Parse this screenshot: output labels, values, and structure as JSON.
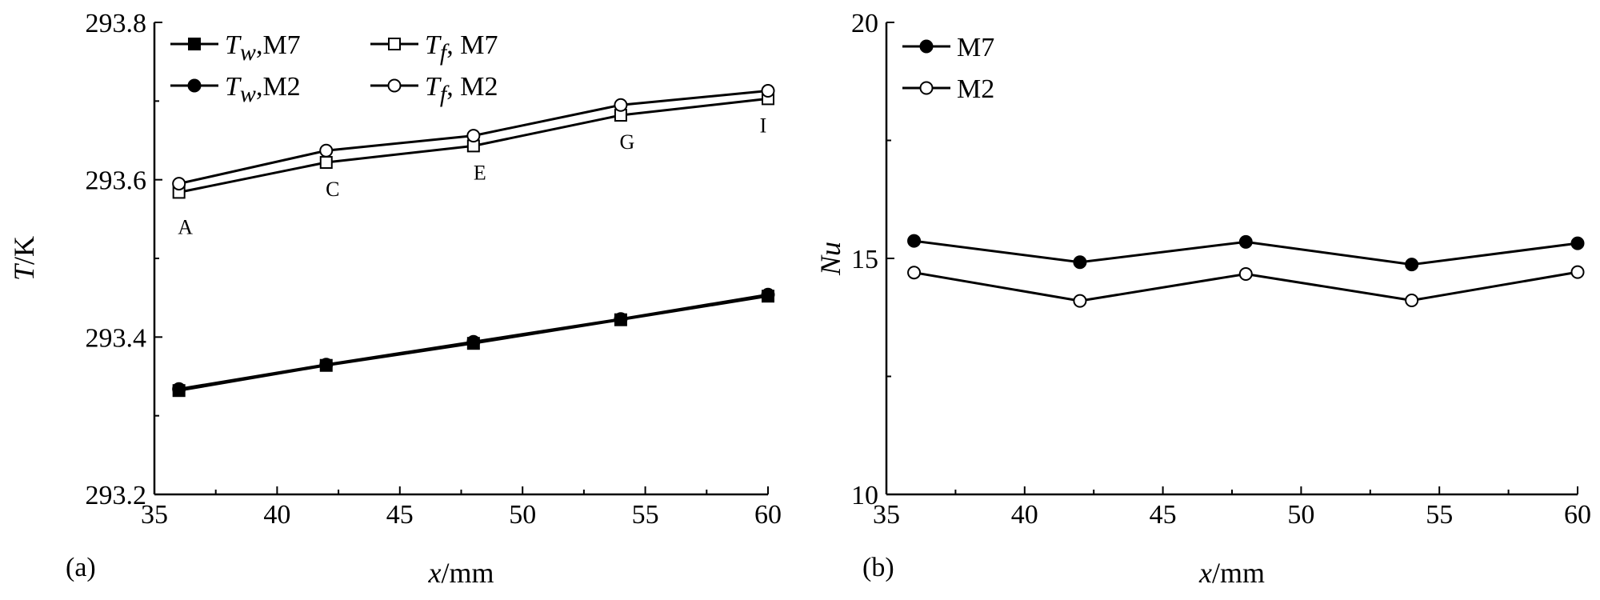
{
  "chart_data": [
    {
      "panel": "(a)",
      "type": "line",
      "xlabel": {
        "var": "x",
        "unit": "/mm"
      },
      "ylabel": {
        "var": "T",
        "unit": "/K"
      },
      "xlim": [
        35,
        60
      ],
      "ylim": [
        293.2,
        293.8
      ],
      "xticks": [
        "35",
        "40",
        "45",
        "50",
        "55",
        "60"
      ],
      "yticks": [
        "293.2",
        "293.4",
        "293.6",
        "293.8"
      ],
      "legend_position": "top-left",
      "x": [
        36,
        42,
        48,
        54,
        60
      ],
      "series": [
        {
          "legend": {
            "var": "T",
            "sub": "w",
            "rest": ",M7"
          },
          "marker": "filled-square",
          "values": [
            293.332,
            293.364,
            293.392,
            293.422,
            293.452
          ]
        },
        {
          "legend": {
            "var": "T",
            "sub": "f",
            "rest": ", M7"
          },
          "marker": "open-square",
          "values": [
            293.584,
            293.622,
            293.643,
            293.682,
            293.703
          ]
        },
        {
          "legend": {
            "var": "T",
            "sub": "w",
            "rest": ",M2"
          },
          "marker": "filled-circle",
          "values": [
            293.334,
            293.365,
            293.394,
            293.423,
            293.454
          ]
        },
        {
          "legend": {
            "var": "T",
            "sub": "f",
            "rest": ", M2"
          },
          "marker": "open-circle",
          "values": [
            293.595,
            293.637,
            293.656,
            293.695,
            293.713
          ]
        }
      ],
      "point_labels": [
        {
          "text": "A",
          "x": 36
        },
        {
          "text": "C",
          "x": 42
        },
        {
          "text": "E",
          "x": 48
        },
        {
          "text": "G",
          "x": 54
        },
        {
          "text": "I",
          "x": 60
        }
      ]
    },
    {
      "panel": "(b)",
      "type": "line",
      "xlabel": {
        "var": "x",
        "unit": "/mm"
      },
      "ylabel": {
        "var": "Nu",
        "unit": ""
      },
      "xlim": [
        35,
        60
      ],
      "ylim": [
        10,
        20
      ],
      "xticks": [
        "35",
        "40",
        "45",
        "50",
        "55",
        "60"
      ],
      "yticks": [
        "10",
        "15",
        "20"
      ],
      "legend_position": "top-left",
      "x": [
        36,
        42,
        48,
        54,
        60
      ],
      "series": [
        {
          "legend": {
            "var": "",
            "sub": "",
            "rest": "M7"
          },
          "marker": "filled-circle",
          "values": [
            15.37,
            14.92,
            15.35,
            14.87,
            15.32
          ]
        },
        {
          "legend": {
            "var": "",
            "sub": "",
            "rest": "M2"
          },
          "marker": "open-circle",
          "values": [
            14.7,
            14.1,
            14.67,
            14.11,
            14.71
          ]
        }
      ]
    }
  ]
}
